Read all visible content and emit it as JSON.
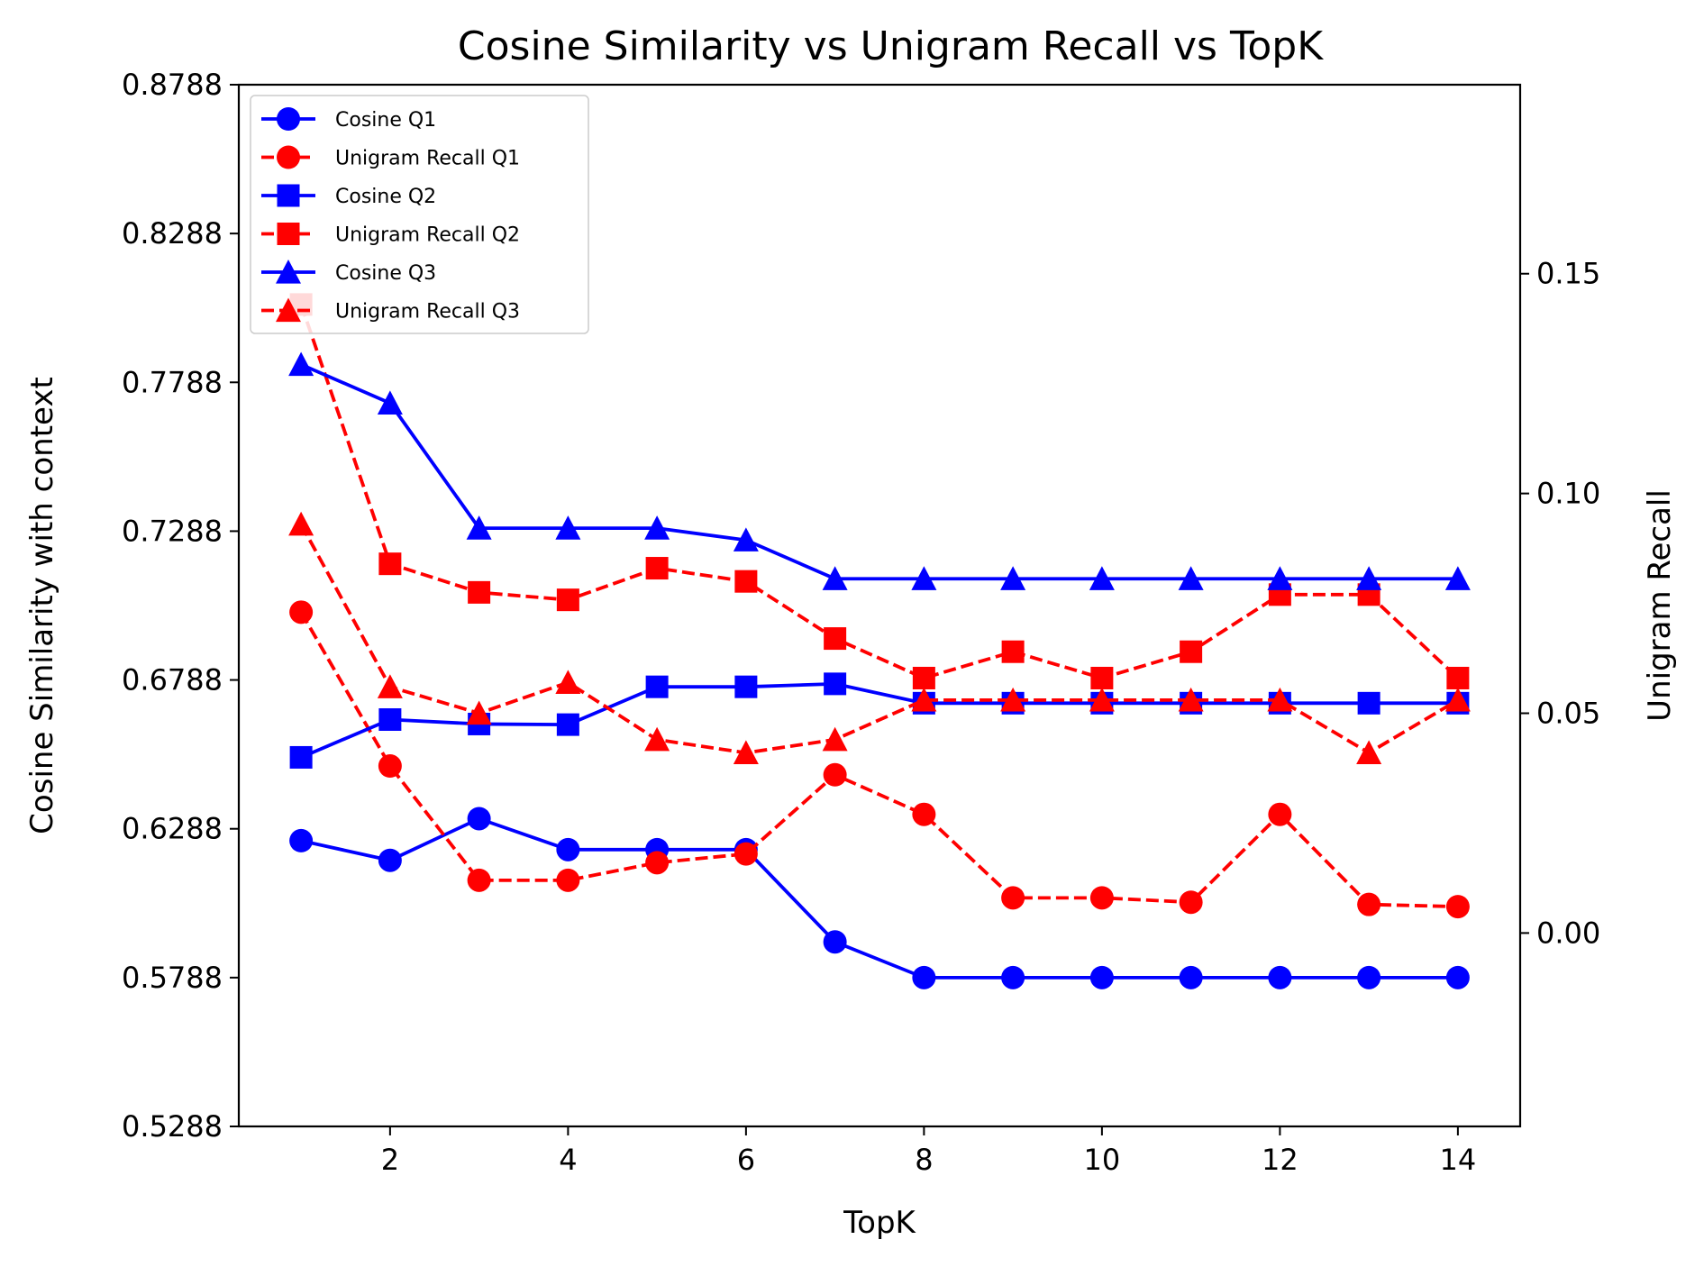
{
  "chart_data": {
    "type": "line",
    "title": "Cosine Similarity vs Unigram Recall vs TopK",
    "xlabel": "TopK",
    "ylabel_left": "Cosine Similarity with context",
    "ylabel_right": "Unigram Recall",
    "xlim": [
      0.3,
      14.7
    ],
    "ylim_left": [
      0.5288,
      0.8788
    ],
    "ylim_right": [
      -0.044,
      0.193
    ],
    "x_ticks": [
      2,
      4,
      6,
      8,
      10,
      12,
      14
    ],
    "x_tick_labels": [
      "2",
      "4",
      "6",
      "8",
      "10",
      "12",
      "14"
    ],
    "y_left_ticks": [
      0.5288,
      0.5788,
      0.6288,
      0.6788,
      0.7288,
      0.7788,
      0.8288,
      0.8788
    ],
    "y_left_tick_labels": [
      "0.5288",
      "0.5788",
      "0.6288",
      "0.6788",
      "0.7288",
      "0.7788",
      "0.8288",
      "0.8788"
    ],
    "y_right_ticks": [
      0.0,
      0.05,
      0.1,
      0.15
    ],
    "y_right_tick_labels": [
      "0.00",
      "0.05",
      "0.10",
      "0.15"
    ],
    "grid": false,
    "legend_position": "top-left",
    "x": [
      1,
      2,
      3,
      4,
      5,
      6,
      7,
      8,
      9,
      10,
      11,
      12,
      13,
      14
    ],
    "series": [
      {
        "name": "Cosine Q1",
        "axis": "left",
        "color": "#0000ff",
        "dash": "solid",
        "marker": "circle",
        "values": [
          0.6248,
          0.6182,
          0.6322,
          0.6218,
          0.6218,
          0.6218,
          0.5908,
          0.5788,
          0.5788,
          0.5788,
          0.5788,
          0.5788,
          0.5788,
          0.5788
        ]
      },
      {
        "name": "Unigram Recall Q1",
        "axis": "right",
        "color": "#ff0000",
        "dash": "dashed",
        "marker": "circle",
        "values": [
          0.073,
          0.038,
          0.012,
          0.012,
          0.016,
          0.018,
          0.036,
          0.027,
          0.008,
          0.008,
          0.007,
          0.027,
          0.0065,
          0.006
        ]
      },
      {
        "name": "Cosine Q2",
        "axis": "left",
        "color": "#0000ff",
        "dash": "solid",
        "marker": "square",
        "values": [
          0.6528,
          0.6655,
          0.664,
          0.6638,
          0.6765,
          0.6765,
          0.6775,
          0.671,
          0.671,
          0.671,
          0.671,
          0.671,
          0.671,
          0.671
        ]
      },
      {
        "name": "Unigram Recall Q2",
        "axis": "right",
        "color": "#ff0000",
        "dash": "dashed",
        "marker": "square",
        "values": [
          0.143,
          0.084,
          0.0775,
          0.0758,
          0.083,
          0.08,
          0.067,
          0.058,
          0.064,
          0.058,
          0.064,
          0.077,
          0.077,
          0.058
        ]
      },
      {
        "name": "Cosine Q3",
        "axis": "left",
        "color": "#0000ff",
        "dash": "solid",
        "marker": "triangle",
        "values": [
          0.7848,
          0.7718,
          0.7298,
          0.7298,
          0.7298,
          0.7258,
          0.7128,
          0.7128,
          0.7128,
          0.7128,
          0.7128,
          0.7128,
          0.7128,
          0.7128
        ]
      },
      {
        "name": "Unigram Recall Q3",
        "axis": "right",
        "color": "#ff0000",
        "dash": "dashed",
        "marker": "triangle",
        "values": [
          0.093,
          0.056,
          0.05,
          0.057,
          0.044,
          0.041,
          0.044,
          0.053,
          0.053,
          0.053,
          0.053,
          0.053,
          0.041,
          0.053
        ]
      }
    ]
  }
}
